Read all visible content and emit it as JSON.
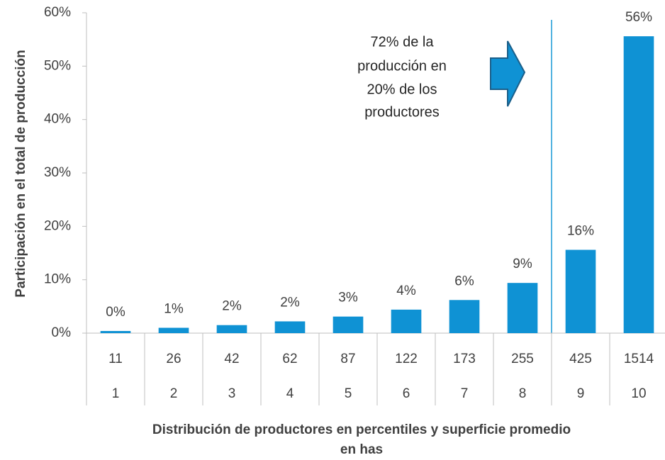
{
  "chart_data": {
    "type": "bar",
    "y_label": "Participación  en el total de producción",
    "x_label": [
      "Distribución  de productores  en percentiles  y superficie  promedio",
      "en has"
    ],
    "annotation": [
      "72% de la",
      "producción  en",
      "20% de los",
      "productores"
    ],
    "categories": [
      "1",
      "2",
      "3",
      "4",
      "5",
      "6",
      "7",
      "8",
      "9",
      "10"
    ],
    "superficie": [
      "11",
      "26",
      "42",
      "62",
      "87",
      "122",
      "173",
      "255",
      "425",
      "1514"
    ],
    "values": [
      0.4,
      1.0,
      1.5,
      2.2,
      3.1,
      4.4,
      6.2,
      9.4,
      15.6,
      55.6
    ],
    "value_labels": [
      "0%",
      "1%",
      "2%",
      "2%",
      "3%",
      "4%",
      "6%",
      "9%",
      "16%",
      "56%"
    ],
    "color": "#0f92d4",
    "ylim": [
      0,
      60
    ],
    "yticks": [
      {
        "value": 0,
        "label": "0%"
      },
      {
        "value": 10,
        "label": "10%"
      },
      {
        "value": 20,
        "label": "20%"
      },
      {
        "value": 30,
        "label": "30%"
      },
      {
        "value": 40,
        "label": "40%"
      },
      {
        "value": 50,
        "label": "50%"
      },
      {
        "value": 60,
        "label": "60%"
      }
    ],
    "grid": false
  }
}
